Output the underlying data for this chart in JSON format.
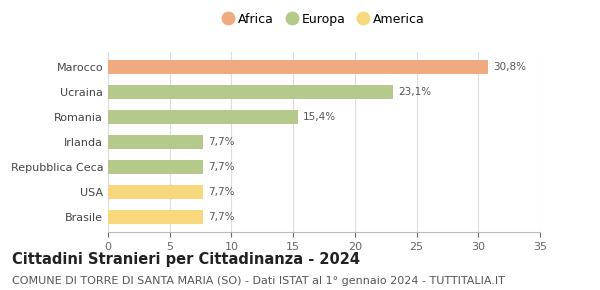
{
  "categories": [
    "Brasile",
    "USA",
    "Repubblica Ceca",
    "Irlanda",
    "Romania",
    "Ucraina",
    "Marocco"
  ],
  "values": [
    7.7,
    7.7,
    7.7,
    7.7,
    15.4,
    23.1,
    30.8
  ],
  "labels": [
    "7,7%",
    "7,7%",
    "7,7%",
    "7,7%",
    "15,4%",
    "23,1%",
    "30,8%"
  ],
  "colors": [
    "#f7d87c",
    "#f7d87c",
    "#b5c98a",
    "#b5c98a",
    "#b5c98a",
    "#b5c98a",
    "#f0aa80"
  ],
  "legend": [
    {
      "label": "Africa",
      "color": "#f0aa80"
    },
    {
      "label": "Europa",
      "color": "#b5c98a"
    },
    {
      "label": "America",
      "color": "#f7d87c"
    }
  ],
  "xlim": [
    0,
    35
  ],
  "xticks": [
    0,
    5,
    10,
    15,
    20,
    25,
    30,
    35
  ],
  "title": "Cittadini Stranieri per Cittadinanza - 2024",
  "subtitle": "COMUNE DI TORRE DI SANTA MARIA (SO) - Dati ISTAT al 1° gennaio 2024 - TUTTITALIA.IT",
  "title_fontsize": 10.5,
  "subtitle_fontsize": 8.0,
  "bar_height": 0.55,
  "label_fontsize": 7.5,
  "ytick_fontsize": 8.0,
  "xtick_fontsize": 8.0,
  "background_color": "#ffffff",
  "grid_color": "#dddddd"
}
